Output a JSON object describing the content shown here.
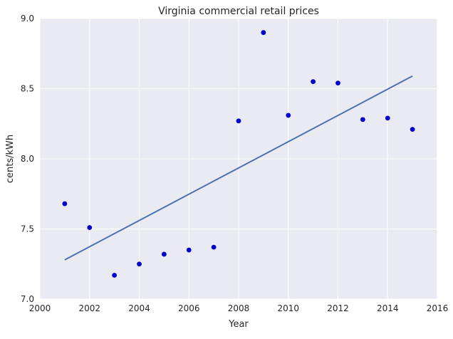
{
  "chart_data": {
    "type": "scatter",
    "title": "Virginia   commercial retail prices",
    "xlabel": "Year",
    "ylabel": "cents/kWh",
    "xlim": [
      2000,
      2016
    ],
    "ylim": [
      7.0,
      9.0
    ],
    "x_ticks": [
      2000,
      2002,
      2004,
      2006,
      2008,
      2010,
      2012,
      2014,
      2016
    ],
    "y_ticks": [
      "7.0",
      "7.5",
      "8.0",
      "8.5",
      "9.0"
    ],
    "grid": true,
    "legend": "none",
    "colors": {
      "plot_background": "#eaeaf2",
      "grid": "#ffffff",
      "points": "#0000cc",
      "trend_line": "#4c72b0"
    },
    "series": [
      {
        "type": "scatter",
        "x": [
          2001,
          2002,
          2003,
          2004,
          2005,
          2006,
          2007,
          2008,
          2009,
          2010,
          2011,
          2012,
          2013,
          2014,
          2015
        ],
        "y": [
          7.68,
          7.51,
          7.17,
          7.25,
          7.32,
          7.35,
          7.37,
          8.27,
          8.9,
          8.31,
          8.55,
          8.54,
          8.28,
          8.29,
          8.21
        ]
      },
      {
        "type": "line",
        "x": [
          2001,
          2015
        ],
        "y": [
          7.28,
          8.59
        ]
      }
    ]
  }
}
